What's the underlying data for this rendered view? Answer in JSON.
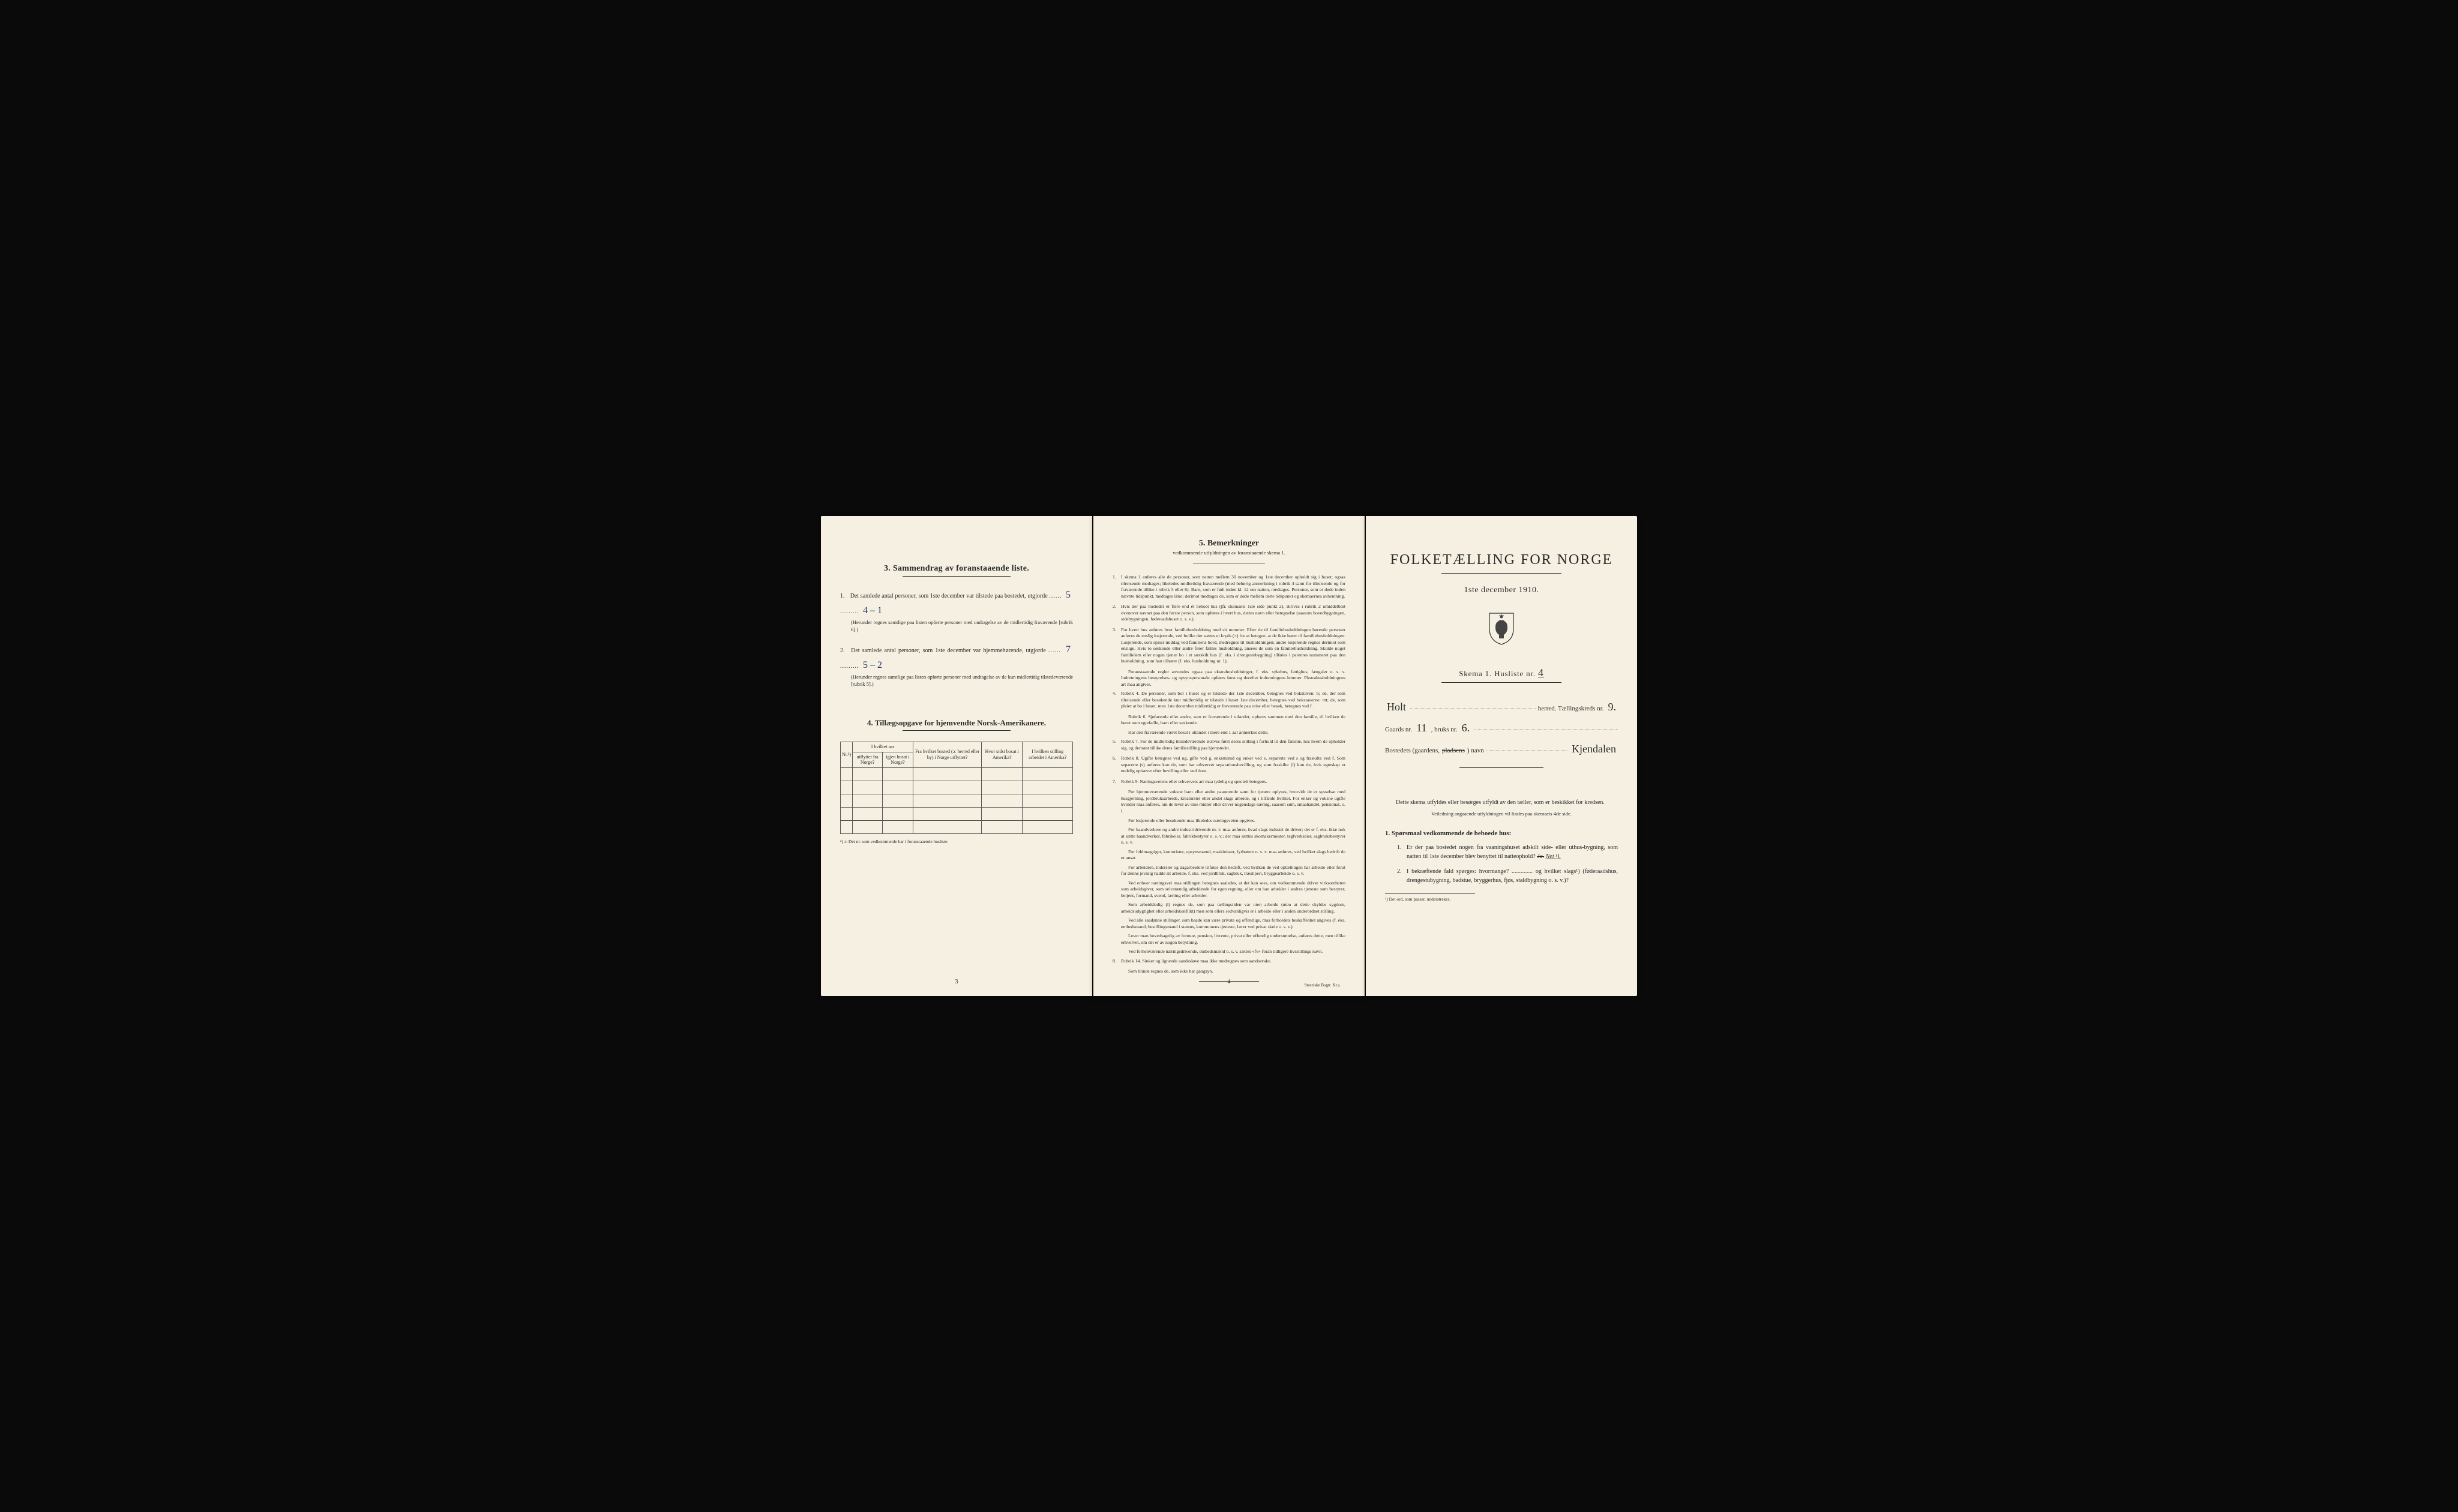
{
  "colors": {
    "background": "#0a0a0a",
    "paper": "#f5f0e1",
    "ink": "#2a2a2a",
    "handwriting_blue": "#2a3a6a"
  },
  "page1": {
    "section3_title": "3.   Sammendrag av foranstaaende liste.",
    "item1_text": "Det samlede antal personer, som 1ste december var tilstede paa bostedet, utgjorde",
    "item1_value": "5",
    "item1_note": "4 – 1",
    "item1_fine": "(Herunder regnes samtlige paa listen opførte personer med undtagelse av de midlertidig fraværende [rubrik 6].)",
    "item2_text": "Det samlede antal personer, som 1ste december var hjemmehørende, utgjorde",
    "item2_value": "7",
    "item2_note": "5 – 2",
    "item2_fine": "(Herunder regnes samtlige paa listen opførte personer med undtagelse av de kun midlertidig tilstedeværende [rubrik 5].)",
    "section4_title": "4.   Tillægsopgave for hjemvendte Norsk-Amerikanere.",
    "table_sup": "I hvilket aar",
    "cols": [
      "Nr.²)",
      "utflyttet fra Norge?",
      "igjen bosat i Norge?",
      "Fra hvilket bosted (ɔ: herred eller by) i Norge utflyttet?",
      "Hvor sidst bosat i Amerika?",
      "I hvilken stilling arbeidet i Amerika?"
    ],
    "footnote": "²) ɔ: Det nr. som vedkommende har i foranstaaende husliste.",
    "page_num": "3"
  },
  "page2": {
    "title": "5.   Bemerkninger",
    "subtitle": "vedkommende utfyldningen av foranstaaende skema 1.",
    "items": [
      {
        "n": "1.",
        "t": "I skema 1 anføres alle de personer, som natten mellem 30 november og 1ste december opholdt sig i huset; ogsaa tilreisende medtages; likeledes midlertidig fraværende (med behørig anmerkning i rubrik 4 samt for tilreisende og for fraværende tillike i rubrik 5 eller 6). Barn, som er født inden kl. 12 om natten, medtages. Personer, som er døde inden nævnte tidspunkt, medtages ikke; derimot medtages de, som er døde mellem dette tidspunkt og skemaernes avhentning."
      },
      {
        "n": "2.",
        "t": "Hvis der paa bostedet er flere end ét beboet hus (jfr. skemaets 1ste side punkt 2), skrives i rubrik 2 umiddelbart ovenover navnet paa den første person, som opføres i hvert hus, dettes navn eller betegnelse (saasom hovedbygningen, sidebygningen, føderaadshuset o. s. v.)."
      },
      {
        "n": "3.",
        "t": "For hvert hus anføres hver familiehusholdning med sit nummer. Efter de til familiehusholdningen hørende personer anføres de enslig losjerende, ved hvilke der sættes et kryds (×) for at betegne, at de ikke hører til familiehusholdningen. Losjerende, som spiser middag ved familiens bord, medregnes til husholdningen; andre losjerende regnes derimot som enslige. Hvis to søskende eller andre fører fælles husholdning, ansees de som en familiehusholdning. Skulde noget familielem eller nogen tjener bo i et særskilt hus (f. eks. i drengestubygning) tilføies i parentes nummeret paa den husholdning, som han tilhører (f. eks. husholdning nr. 1)."
      },
      {
        "n": "",
        "t": "Foranstaaende regler anvendes ogsaa paa ekstrahusholdninger, f. eks. sykehus, fattighus, fængsler o. s. v. Indretningens bestyrelses- og opsynspersonale opføres først og derefter indretningens lemmer. Ekstrahusholdningens art maa angives."
      },
      {
        "n": "4.",
        "t": "Rubrik 4. De personer, som bor i huset og er tilstede der 1ste december, betegnes ved bokstaven: b; de, der som tilreisende eller besøkende kun midlertidig er tilstede i huset 1ste december, betegnes ved bokstaverne: mt; de, som pleier at bo i huset, men 1ste december midlertidig er fraværende paa reise eller besøk, betegnes ved f."
      },
      {
        "n": "",
        "t": "Rubrik 6. Sjøfarende eller andre, som er fraværende i utlandet, opføres sammen med den familie, til hvilken de hører som egtefælle, barn eller søskende."
      },
      {
        "n": "",
        "t": "Har den fraværende været bosat i utlandet i mere end 1 aar anmerkes dette."
      },
      {
        "n": "5.",
        "t": "Rubrik 7. For de midlertidig tilstedeværende skrives først deres stilling i forhold til den familie, hos hvem de opholder sig, og dernæst tillike deres familiestilling paa hjemstedet."
      },
      {
        "n": "6.",
        "t": "Rubrik 8. Ugifte betegnes ved ug, gifte ved g, enkemænd og enker ved e, separerte ved s og fraskilte ved f. Som separerte (s) anføres kun de, som har erhvervet separationsbevilling, og som fraskilte (f) kun de, hvis egteskap er endelig ophævet efter bevilling eller ved dom."
      },
      {
        "n": "7.",
        "t": "Rubrik 9. Næringsveiens eller erhvervets art maa tydelig og specielt betegnes."
      },
      {
        "n": "",
        "t": "For hjemmeværende voksne barn eller andre paarørende samt for tjenere oplyses, hvorvidt de er sysselsat med husgjerning, jordbruksarbeide, kreaturstel eller andet slags arbeide, og i tilfælde hvilket. For enker og voksne ugifte kvinder maa anføres, om de lever av sine midler eller driver nogenslags næring, saasom søm, smaahandel, pensionat, o. l."
      },
      {
        "n": "",
        "t": "For losjerende eller besøkende maa likeledes næringsveien opgives."
      },
      {
        "n": "",
        "t": "For haandverkere og andre industridrivende m. v. maa anføres, hvad slags industri de driver; det er f. eks. ikke nok at sætte haandverker, fabrikeier, fabrikbestyrer o. s. v.; der maa sættes skomakermester, teglverkseier, sagbruksbestyrer o. s. v."
      },
      {
        "n": "",
        "t": "For fuldmægtiger, kontorister, opsynsmænd, maskinister, fyrbøtere o. s. v. maa anføres, ved hvilket slags bedrift de er ansat."
      },
      {
        "n": "",
        "t": "For arbeidere, inderster og dagarbeidere tilføies den bedrift, ved hvilken de ved optællingen har arbeide eller forut for denne jevnlig hadde sit arbeide, f. eks. ved jordbruk, sagbruk, træsliperi, bryggearbeide o. s. v."
      },
      {
        "n": "",
        "t": "Ved enhver næringsvei maa stillingen betegnes saaledes, at det kan sees, om vedkommende driver virksomheten som arbeidsgiver, som selvstændig arbeidende for egen regning, eller om han arbeider i andres tjeneste som bestyrer, betjent, formand, svend, lærling eller arbeider."
      },
      {
        "n": "",
        "t": "Som arbeidsledig (l) regnes de, som paa tællingstiden var uten arbeide (uten at dette skyldes sygdom, arbeidsudygtighet eller arbeidskonflikt) men som ellers sedvanligvis er i arbeide eller i anden underordnet stilling."
      },
      {
        "n": "",
        "t": "Ved alle saadanne stillinger, som baade kan være private og offentlige, maa forholdets beskaffenhet angives (f. eks. embedsmand, bestillingsmand i statens, kommunens tjeneste, lærer ved privat skole o. s. v.)."
      },
      {
        "n": "",
        "t": "Lever man hovedsagelig av formue, pension, livrente, privat eller offentlig understøttelse, anføres dette, men tillike erhvervet, om det er av nogen betydning."
      },
      {
        "n": "",
        "t": "Ved forhenværende næringsdrivende, embedsmænd o. s. v. sættes «fv» foran tidligere livsstillings navn."
      },
      {
        "n": "8.",
        "t": "Rubrik 14. Sinker og lignende aandssløve maa ikke medregnes som aandssvake."
      },
      {
        "n": "",
        "t": "Som blinde regnes de, som ikke har gangsyn."
      }
    ],
    "page_num": "4",
    "printer": "Steen'ske Bogtr.   Kr.a."
  },
  "page3": {
    "main_title": "FOLKETÆLLING FOR NORGE",
    "date": "1ste december 1910.",
    "skema": "Skema 1.  Husliste nr.",
    "husliste_nr": "4",
    "herred_label": "herred.  Tællingskreds nr.",
    "herred_value": "Holt",
    "kreds_nr": "9.",
    "gaards_label": "Gaards nr.",
    "gaards_nr": "11",
    "bruks_label": ", bruks nr.",
    "bruks_nr": "6.",
    "bosted_label": "Bostedets (gaardens,",
    "bosted_struck": "pladsens",
    "bosted_label2": ") navn",
    "bosted_value": "Kjendalen",
    "instruction": "Dette skema utfyldes eller besørges utfyldt av den tæller, som er beskikket for kredsen.",
    "subinstr": "Veiledning angaaende utfyldningen vil findes paa skemaets 4de side.",
    "q_heading": "1. Spørsmaal vedkommende de beboede hus:",
    "q1": "Er der paa bostedet nogen fra vaaningshuset adskilt side- eller uthus-bygning, som natten til 1ste december blev benyttet til natteophold?",
    "q1_answer_struck": "Ja.",
    "q1_answer": "Nei ¹).",
    "q2": "I bekræftende fald spørges: hvormange? .............. og hvilket slags¹) (føderaadshus, drengestubygning, badstue, bryggerhus, fjøs, staldbygning o. s. v.)?",
    "footnote": "¹) Det ord, som passer, understrekes."
  }
}
